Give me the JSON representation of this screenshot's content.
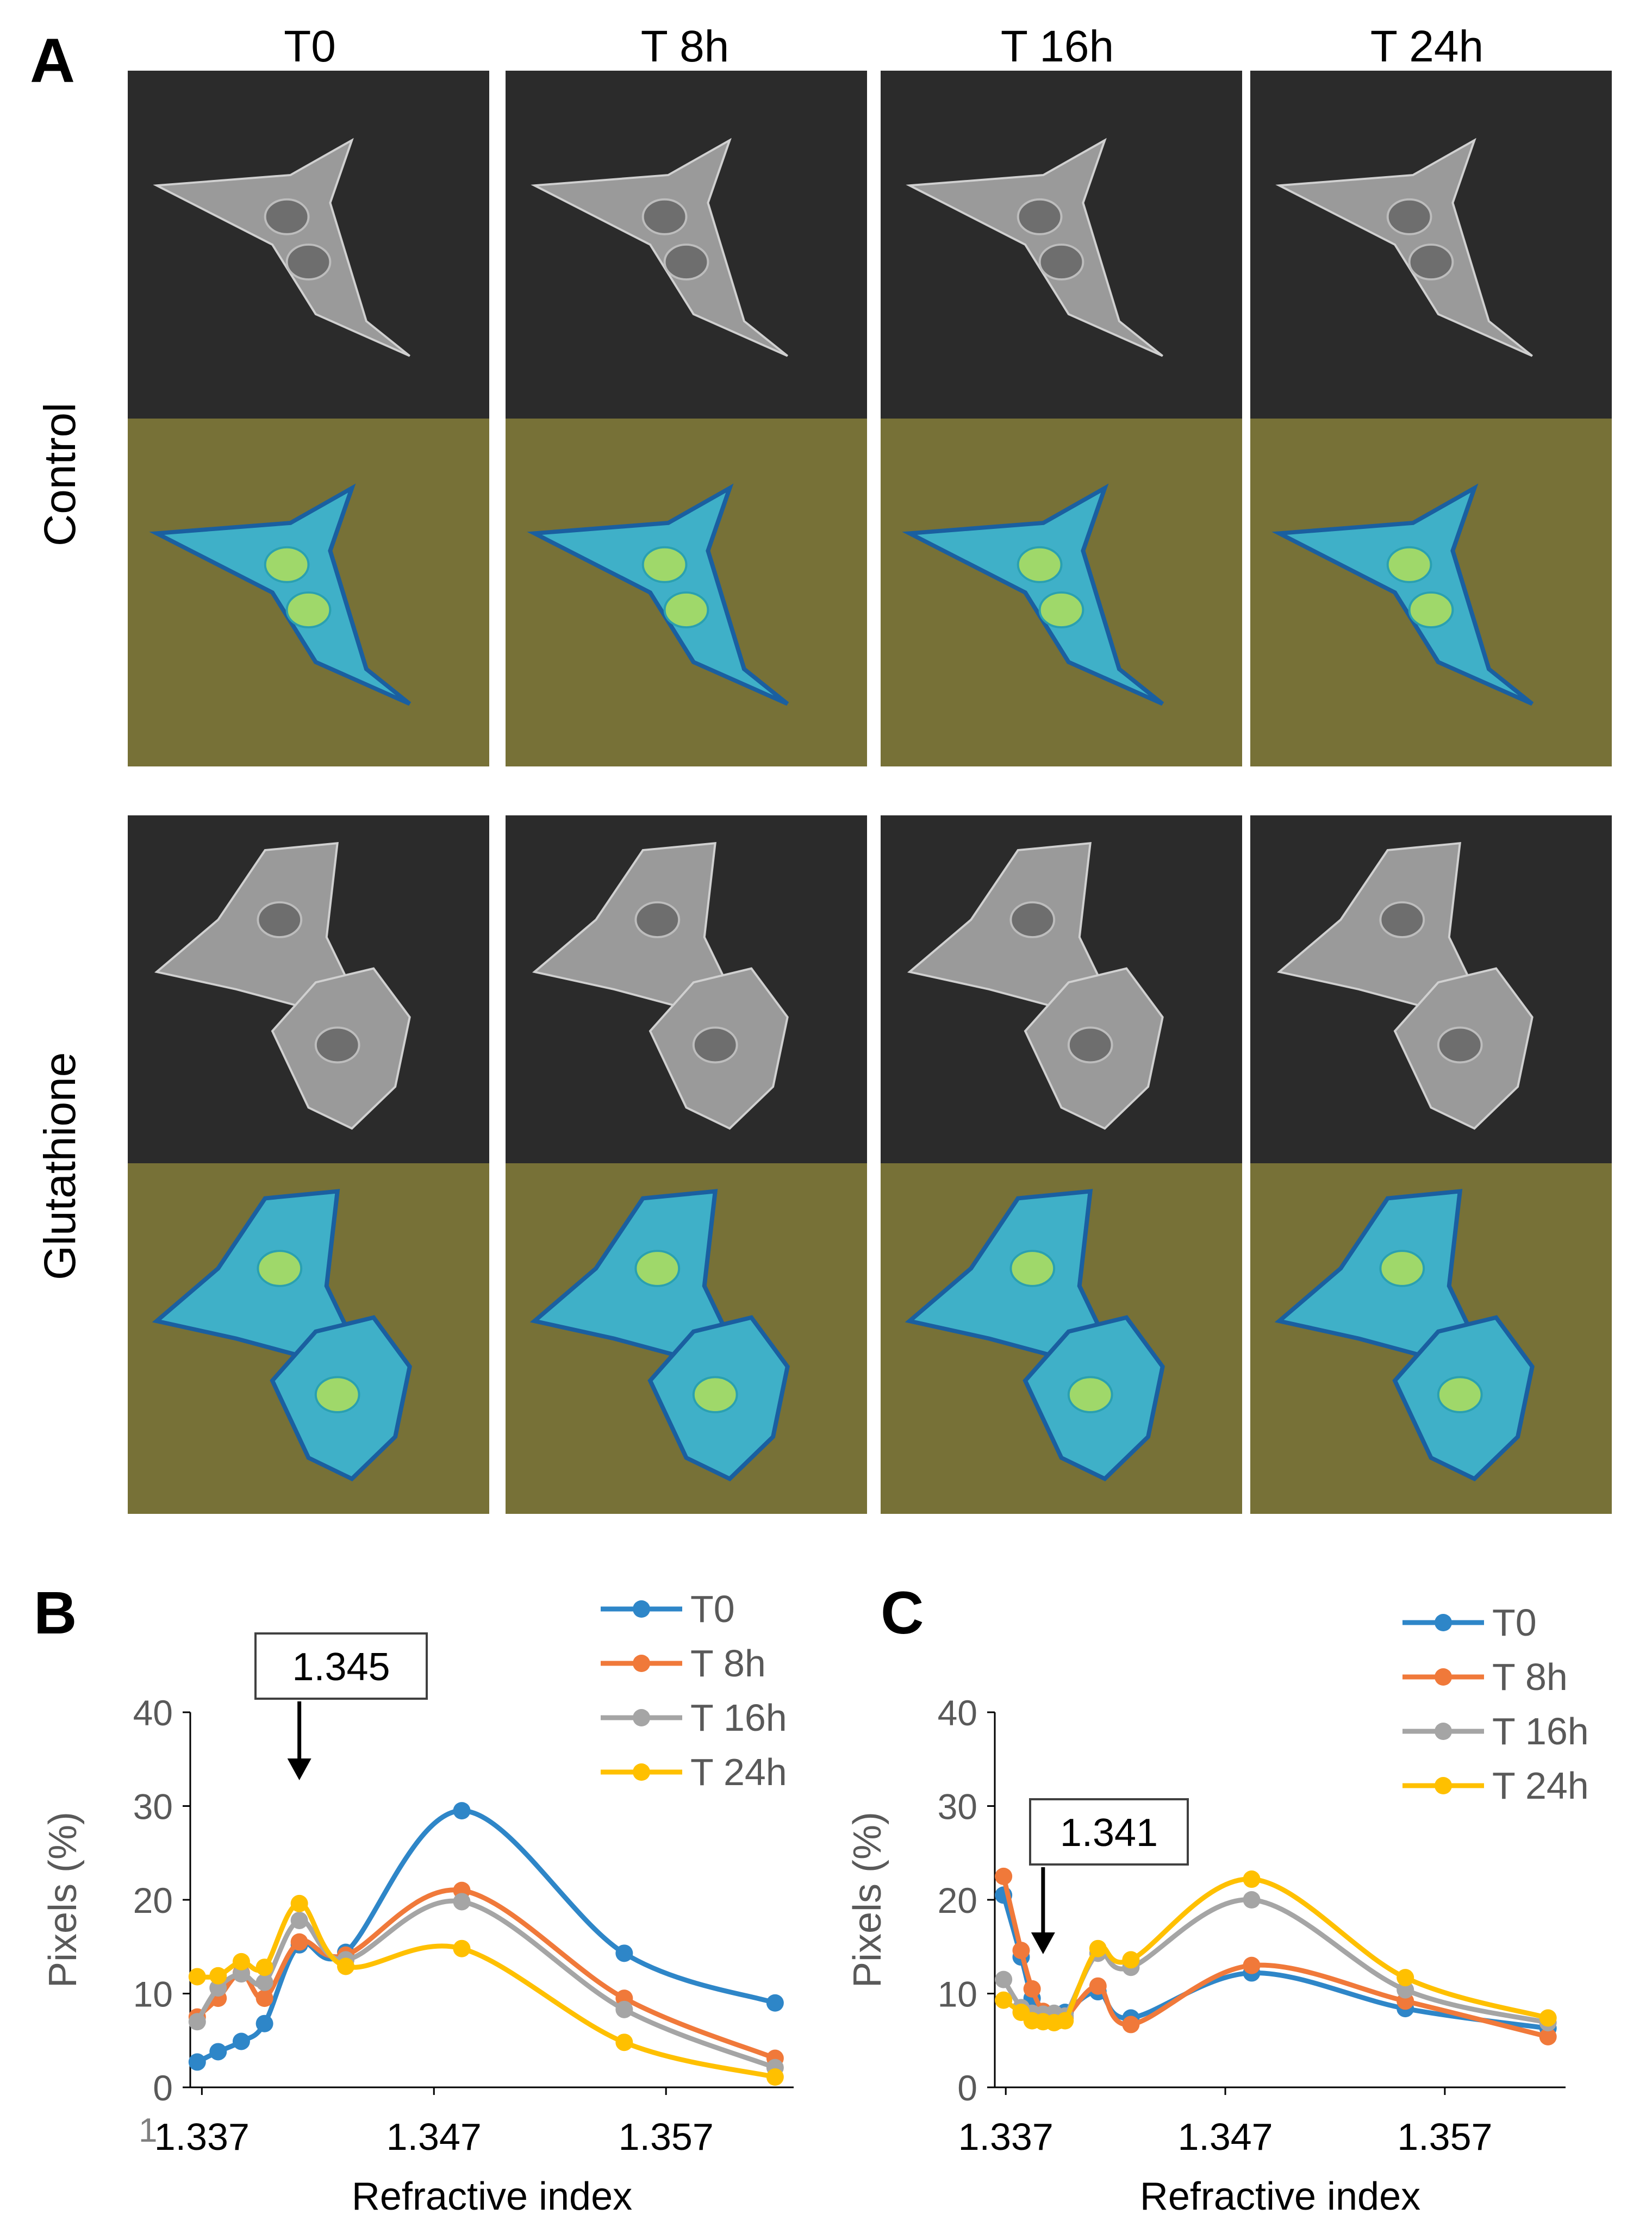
{
  "panel_a": {
    "letter": "A",
    "columns": [
      "T0",
      "T 8h",
      "T 16h",
      "T 24h"
    ],
    "rows": [
      "Control",
      "Glutathione"
    ]
  },
  "chart_data": [
    {
      "type": "line",
      "panel": "B",
      "callout": "1.345",
      "title": "",
      "xlabel": "Refractive index",
      "ylabel": "Pixels (%)",
      "xticks": [
        "1.337",
        "1.347",
        "1.357"
      ],
      "x_origin_label": "1",
      "xlim": [
        1.3365,
        1.3625
      ],
      "ylim": [
        0,
        40
      ],
      "yticks": [
        0,
        10,
        20,
        30,
        40
      ],
      "series": [
        {
          "name": "T0",
          "color": "#2e86c8",
          "x": [
            1.3368,
            1.3377,
            1.3387,
            1.3397,
            1.3412,
            1.3432,
            1.3482,
            1.3552,
            1.3617
          ],
          "y": [
            2.7,
            3.8,
            4.9,
            6.8,
            15.2,
            14.4,
            29.5,
            14.3,
            9.0
          ]
        },
        {
          "name": "T 8h",
          "color": "#f0793a",
          "x": [
            1.3368,
            1.3377,
            1.3387,
            1.3397,
            1.3412,
            1.3432,
            1.3482,
            1.3552,
            1.3617
          ],
          "y": [
            7.5,
            9.5,
            12.2,
            9.5,
            15.5,
            14.1,
            21.0,
            9.5,
            3.1
          ]
        },
        {
          "name": "T 16h",
          "color": "#a5a5a5",
          "x": [
            1.3368,
            1.3377,
            1.3387,
            1.3397,
            1.3412,
            1.3432,
            1.3482,
            1.3552,
            1.3617
          ],
          "y": [
            7.0,
            10.6,
            12.1,
            11.2,
            17.8,
            13.6,
            19.8,
            8.3,
            2.1
          ]
        },
        {
          "name": "T 24h",
          "color": "#ffc000",
          "x": [
            1.3368,
            1.3377,
            1.3387,
            1.3397,
            1.3412,
            1.3432,
            1.3482,
            1.3552,
            1.3617
          ],
          "y": [
            11.8,
            11.9,
            13.4,
            12.8,
            19.6,
            12.9,
            14.8,
            4.8,
            1.1
          ]
        }
      ]
    },
    {
      "type": "line",
      "panel": "C",
      "callout": "1.341",
      "title": "",
      "xlabel": "Refractive index",
      "ylabel": "Pixels (%)",
      "xticks": [
        "1.337",
        "1.347",
        "1.357"
      ],
      "xlim": [
        1.3365,
        1.3625
      ],
      "ylim": [
        0,
        40
      ],
      "yticks": [
        0,
        10,
        20,
        30,
        40
      ],
      "series": [
        {
          "name": "T0",
          "color": "#2e86c8",
          "x": [
            1.3369,
            1.3377,
            1.3382,
            1.3387,
            1.3392,
            1.3397,
            1.3412,
            1.3427,
            1.3482,
            1.3552,
            1.3617
          ],
          "y": [
            20.5,
            13.9,
            9.5,
            7.7,
            7.5,
            8.0,
            10.2,
            7.4,
            12.2,
            8.4,
            6.3
          ]
        },
        {
          "name": "T 8h",
          "color": "#f0793a",
          "x": [
            1.3369,
            1.3377,
            1.3382,
            1.3387,
            1.3392,
            1.3397,
            1.3412,
            1.3427,
            1.3482,
            1.3552,
            1.3617
          ],
          "y": [
            22.5,
            14.6,
            10.5,
            8.1,
            7.6,
            7.4,
            10.8,
            6.7,
            13.0,
            9.2,
            5.4
          ]
        },
        {
          "name": "T 16h",
          "color": "#a5a5a5",
          "x": [
            1.3369,
            1.3377,
            1.3382,
            1.3387,
            1.3392,
            1.3397,
            1.3412,
            1.3427,
            1.3482,
            1.3552,
            1.3617
          ],
          "y": [
            11.5,
            8.5,
            7.9,
            7.8,
            7.9,
            7.6,
            14.3,
            12.8,
            20.0,
            10.4,
            6.9
          ]
        },
        {
          "name": "T 24h",
          "color": "#ffc000",
          "x": [
            1.3369,
            1.3377,
            1.3382,
            1.3387,
            1.3392,
            1.3397,
            1.3412,
            1.3427,
            1.3482,
            1.3552,
            1.3617
          ],
          "y": [
            9.3,
            8.0,
            7.1,
            7.0,
            6.9,
            7.1,
            14.8,
            13.6,
            22.2,
            11.7,
            7.4
          ]
        }
      ]
    }
  ]
}
